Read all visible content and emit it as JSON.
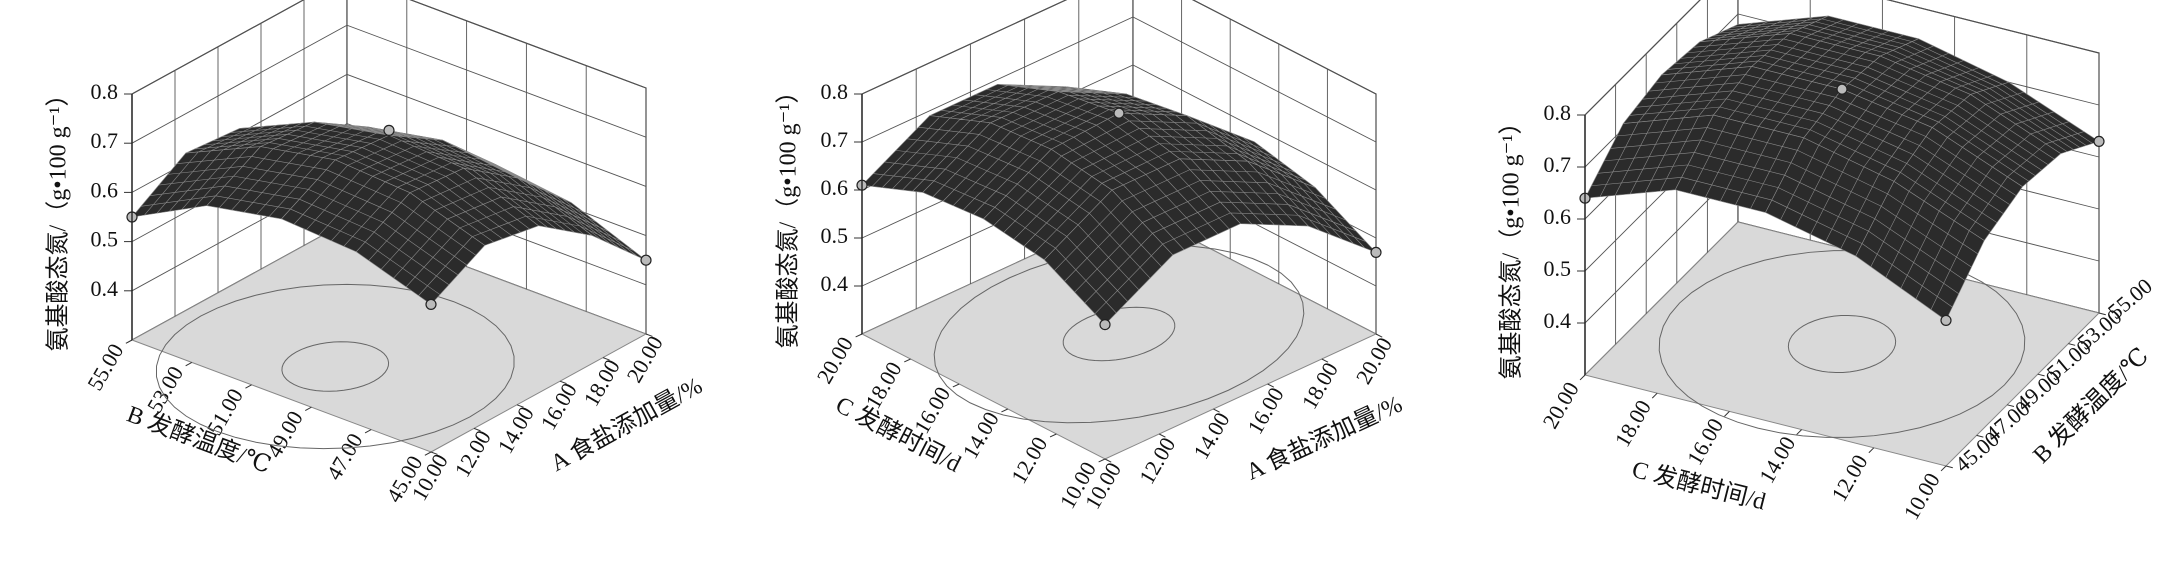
{
  "chart_data": [
    {
      "type": "surface3d",
      "z_label": "氨基酸态氮/（g•100 g⁻¹）",
      "x_label": "A 食盐添加量/%",
      "y_label": "B 发酵温度/℃",
      "xlim": [
        10,
        20
      ],
      "xticks": [
        {
          "value": 10,
          "label": "10.00"
        },
        {
          "value": 12,
          "label": "12.00"
        },
        {
          "value": 14,
          "label": "14.00"
        },
        {
          "value": 16,
          "label": "16.00"
        },
        {
          "value": 18,
          "label": "18.00"
        },
        {
          "value": 20,
          "label": "20.00"
        }
      ],
      "ylim": [
        45,
        55
      ],
      "yticks": [
        {
          "value": 45,
          "label": "45.00"
        },
        {
          "value": 47,
          "label": "47.00"
        },
        {
          "value": 49,
          "label": "49.00"
        },
        {
          "value": 51,
          "label": "51.00"
        },
        {
          "value": 53,
          "label": "53.00"
        },
        {
          "value": 55,
          "label": "55.00"
        }
      ],
      "zlim": [
        0.3,
        0.8
      ],
      "zticks": [
        0.4,
        0.5,
        0.6,
        0.7,
        0.8
      ],
      "grid_x": [
        10,
        12.5,
        15,
        17.5,
        20
      ],
      "grid_y": [
        45,
        47.5,
        50,
        52.5,
        55
      ],
      "z": [
        [
          0.6,
          0.66,
          0.64,
          0.56,
          0.45
        ],
        [
          0.65,
          0.71,
          0.7,
          0.62,
          0.51
        ],
        [
          0.66,
          0.72,
          0.71,
          0.64,
          0.53
        ],
        [
          0.63,
          0.69,
          0.68,
          0.61,
          0.5
        ],
        [
          0.55,
          0.62,
          0.61,
          0.54,
          0.44
        ]
      ],
      "points": {
        "x": [
          10,
          20,
          10,
          15
        ],
        "y": [
          55,
          45,
          45,
          50
        ],
        "z": [
          0.55,
          0.45,
          0.6,
          0.72
        ]
      },
      "surface_color": "#2b2b2b",
      "floor_color": "#d9d9d9"
    },
    {
      "type": "surface3d",
      "z_label": "氨基酸态氮/（g•100 g⁻¹）",
      "x_label": "A 食盐添加量/%",
      "y_label": "C 发酵时间/d",
      "xlim": [
        10,
        20
      ],
      "xticks": [
        {
          "value": 10,
          "label": "10.00"
        },
        {
          "value": 12,
          "label": "12.00"
        },
        {
          "value": 14,
          "label": "14.00"
        },
        {
          "value": 16,
          "label": "16.00"
        },
        {
          "value": 18,
          "label": "18.00"
        },
        {
          "value": 20,
          "label": "20.00"
        }
      ],
      "ylim": [
        10,
        20
      ],
      "yticks": [
        {
          "value": 10,
          "label": "10.00"
        },
        {
          "value": 12,
          "label": "12.00"
        },
        {
          "value": 14,
          "label": "14.00"
        },
        {
          "value": 16,
          "label": "16.00"
        },
        {
          "value": 18,
          "label": "18.00"
        },
        {
          "value": 20,
          "label": "20.00"
        }
      ],
      "zlim": [
        0.3,
        0.8
      ],
      "zticks": [
        0.4,
        0.5,
        0.6,
        0.7,
        0.8
      ],
      "grid_x": [
        10,
        12.5,
        15,
        17.5,
        20
      ],
      "grid_y": [
        10,
        12.5,
        15,
        17.5,
        20
      ],
      "z": [
        [
          0.58,
          0.66,
          0.66,
          0.59,
          0.47
        ],
        [
          0.65,
          0.73,
          0.73,
          0.66,
          0.54
        ],
        [
          0.67,
          0.75,
          0.76,
          0.69,
          0.57
        ],
        [
          0.66,
          0.74,
          0.74,
          0.67,
          0.55
        ],
        [
          0.61,
          0.69,
          0.69,
          0.62,
          0.5
        ]
      ],
      "points": {
        "x": [
          10,
          20,
          10,
          15
        ],
        "y": [
          20,
          10,
          10,
          15
        ],
        "z": [
          0.61,
          0.47,
          0.58,
          0.76
        ]
      },
      "surface_color": "#2b2b2b",
      "floor_color": "#d9d9d9"
    },
    {
      "type": "surface3d",
      "z_label": "氨基酸态氮/（g•100 g⁻¹）",
      "x_label": "B 发酵温度/℃",
      "y_label": "C 发酵时间/d",
      "xlim": [
        45,
        55
      ],
      "xticks": [
        {
          "value": 45,
          "label": "45.00"
        },
        {
          "value": 47,
          "label": "47.00"
        },
        {
          "value": 49,
          "label": "49.00"
        },
        {
          "value": 51,
          "label": "51.00"
        },
        {
          "value": 53,
          "label": "53.00"
        },
        {
          "value": 55,
          "label": "55.00"
        }
      ],
      "ylim": [
        10,
        20
      ],
      "yticks": [
        {
          "value": 10,
          "label": "10.00"
        },
        {
          "value": 12,
          "label": "12.00"
        },
        {
          "value": 14,
          "label": "14.00"
        },
        {
          "value": 16,
          "label": "16.00"
        },
        {
          "value": 18,
          "label": "18.00"
        },
        {
          "value": 20,
          "label": "20.00"
        }
      ],
      "zlim": [
        0.3,
        0.8
      ],
      "zticks": [
        0.4,
        0.5,
        0.6,
        0.7,
        0.8
      ],
      "grid_x": [
        45,
        47.5,
        50,
        52.5,
        55
      ],
      "grid_y": [
        10,
        12.5,
        15,
        17.5,
        20
      ],
      "z": [
        [
          0.58,
          0.66,
          0.69,
          0.68,
          0.63
        ],
        [
          0.66,
          0.73,
          0.76,
          0.75,
          0.7
        ],
        [
          0.7,
          0.77,
          0.79,
          0.78,
          0.74
        ],
        [
          0.7,
          0.77,
          0.79,
          0.78,
          0.74
        ],
        [
          0.64,
          0.71,
          0.73,
          0.72,
          0.68
        ]
      ],
      "points": {
        "x": [
          45,
          55,
          45,
          50
        ],
        "y": [
          20,
          10,
          10,
          15
        ],
        "z": [
          0.64,
          0.63,
          0.58,
          0.79
        ]
      },
      "surface_color": "#2b2b2b",
      "floor_color": "#d9d9d9"
    }
  ]
}
